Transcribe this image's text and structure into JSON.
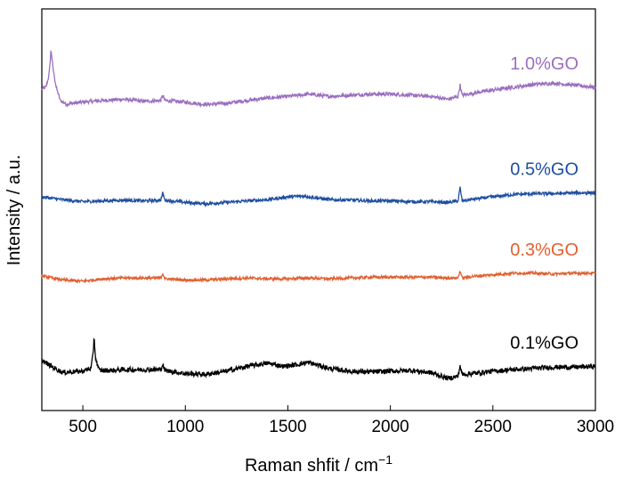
{
  "chart_data": {
    "type": "line",
    "title": "",
    "xlabel": "Raman shfit / cm",
    "xlabel_superscript": "−1",
    "ylabel": "Intensity / a.u.",
    "xlim": [
      300,
      3000
    ],
    "ylim": [
      0,
      10
    ],
    "xticks": [
      500,
      1000,
      1500,
      2000,
      2500,
      3000
    ],
    "y_tick_labels": false,
    "grid": false,
    "legend": "inline labels at right end of each trace",
    "series": [
      {
        "name": "1.0%GO",
        "color": "#9b6fbf",
        "noise": 0.045,
        "points": [
          [
            300,
            8.0
          ],
          [
            320,
            8.05
          ],
          [
            335,
            8.35
          ],
          [
            345,
            8.98
          ],
          [
            355,
            8.5
          ],
          [
            370,
            8.05
          ],
          [
            390,
            7.72
          ],
          [
            420,
            7.63
          ],
          [
            500,
            7.68
          ],
          [
            600,
            7.72
          ],
          [
            700,
            7.75
          ],
          [
            800,
            7.7
          ],
          [
            880,
            7.72
          ],
          [
            890,
            7.85
          ],
          [
            900,
            7.72
          ],
          [
            1000,
            7.68
          ],
          [
            1100,
            7.62
          ],
          [
            1200,
            7.65
          ],
          [
            1300,
            7.72
          ],
          [
            1400,
            7.78
          ],
          [
            1500,
            7.82
          ],
          [
            1600,
            7.88
          ],
          [
            1700,
            7.82
          ],
          [
            1800,
            7.85
          ],
          [
            1900,
            7.88
          ],
          [
            2000,
            7.88
          ],
          [
            2100,
            7.85
          ],
          [
            2200,
            7.82
          ],
          [
            2280,
            7.75
          ],
          [
            2330,
            7.82
          ],
          [
            2340,
            8.1
          ],
          [
            2350,
            7.85
          ],
          [
            2400,
            7.9
          ],
          [
            2500,
            7.98
          ],
          [
            2600,
            8.05
          ],
          [
            2700,
            8.12
          ],
          [
            2800,
            8.15
          ],
          [
            2900,
            8.1
          ],
          [
            3000,
            8.05
          ]
        ]
      },
      {
        "name": "0.5%GO",
        "color": "#1f4fa0",
        "noise": 0.04,
        "points": [
          [
            300,
            5.32
          ],
          [
            400,
            5.25
          ],
          [
            500,
            5.2
          ],
          [
            600,
            5.22
          ],
          [
            700,
            5.24
          ],
          [
            800,
            5.22
          ],
          [
            880,
            5.24
          ],
          [
            890,
            5.42
          ],
          [
            900,
            5.24
          ],
          [
            1000,
            5.18
          ],
          [
            1100,
            5.15
          ],
          [
            1200,
            5.18
          ],
          [
            1300,
            5.22
          ],
          [
            1400,
            5.25
          ],
          [
            1500,
            5.32
          ],
          [
            1580,
            5.34
          ],
          [
            1700,
            5.25
          ],
          [
            1800,
            5.24
          ],
          [
            1900,
            5.22
          ],
          [
            2000,
            5.22
          ],
          [
            2100,
            5.2
          ],
          [
            2200,
            5.2
          ],
          [
            2280,
            5.18
          ],
          [
            2330,
            5.22
          ],
          [
            2340,
            5.55
          ],
          [
            2350,
            5.22
          ],
          [
            2400,
            5.26
          ],
          [
            2500,
            5.32
          ],
          [
            2600,
            5.38
          ],
          [
            2700,
            5.4
          ],
          [
            2800,
            5.4
          ],
          [
            2900,
            5.42
          ],
          [
            3000,
            5.42
          ]
        ]
      },
      {
        "name": "0.3%GO",
        "color": "#e06030",
        "noise": 0.035,
        "points": [
          [
            300,
            3.35
          ],
          [
            400,
            3.25
          ],
          [
            500,
            3.22
          ],
          [
            600,
            3.28
          ],
          [
            700,
            3.3
          ],
          [
            800,
            3.3
          ],
          [
            880,
            3.3
          ],
          [
            890,
            3.42
          ],
          [
            900,
            3.28
          ],
          [
            1000,
            3.25
          ],
          [
            1100,
            3.25
          ],
          [
            1200,
            3.28
          ],
          [
            1300,
            3.3
          ],
          [
            1400,
            3.28
          ],
          [
            1500,
            3.28
          ],
          [
            1600,
            3.3
          ],
          [
            1700,
            3.28
          ],
          [
            1800,
            3.3
          ],
          [
            1900,
            3.32
          ],
          [
            2000,
            3.32
          ],
          [
            2100,
            3.32
          ],
          [
            2200,
            3.32
          ],
          [
            2280,
            3.3
          ],
          [
            2330,
            3.3
          ],
          [
            2340,
            3.48
          ],
          [
            2350,
            3.3
          ],
          [
            2400,
            3.34
          ],
          [
            2500,
            3.38
          ],
          [
            2600,
            3.42
          ],
          [
            2700,
            3.42
          ],
          [
            2800,
            3.4
          ],
          [
            2900,
            3.42
          ],
          [
            3000,
            3.42
          ]
        ]
      },
      {
        "name": "0.1%GO",
        "color": "#000000",
        "noise": 0.06,
        "points": [
          [
            300,
            1.25
          ],
          [
            330,
            1.15
          ],
          [
            400,
            0.95
          ],
          [
            500,
            0.98
          ],
          [
            540,
            1.05
          ],
          [
            550,
            1.4
          ],
          [
            555,
            1.85
          ],
          [
            562,
            1.3
          ],
          [
            580,
            1.0
          ],
          [
            650,
            1.0
          ],
          [
            700,
            1.02
          ],
          [
            800,
            1.02
          ],
          [
            880,
            1.02
          ],
          [
            890,
            1.15
          ],
          [
            900,
            1.0
          ],
          [
            1000,
            0.92
          ],
          [
            1100,
            0.9
          ],
          [
            1200,
            0.98
          ],
          [
            1300,
            1.1
          ],
          [
            1400,
            1.18
          ],
          [
            1480,
            1.1
          ],
          [
            1550,
            1.15
          ],
          [
            1600,
            1.2
          ],
          [
            1700,
            1.05
          ],
          [
            1800,
            0.98
          ],
          [
            1900,
            0.96
          ],
          [
            2000,
            0.98
          ],
          [
            2100,
            1.0
          ],
          [
            2200,
            0.94
          ],
          [
            2280,
            0.8
          ],
          [
            2330,
            0.85
          ],
          [
            2340,
            1.12
          ],
          [
            2350,
            0.9
          ],
          [
            2400,
            0.92
          ],
          [
            2500,
            0.98
          ],
          [
            2600,
            1.02
          ],
          [
            2700,
            1.05
          ],
          [
            2800,
            1.08
          ],
          [
            2900,
            1.08
          ],
          [
            3000,
            1.1
          ]
        ]
      }
    ]
  }
}
